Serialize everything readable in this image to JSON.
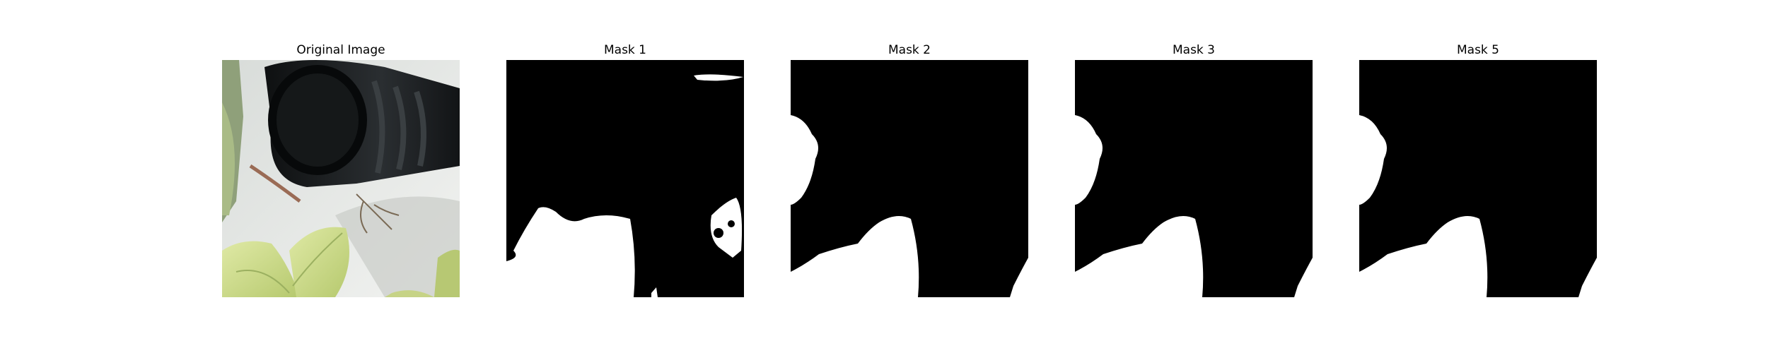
{
  "figure": {
    "panels": [
      {
        "title": "Original Image"
      },
      {
        "title": "Mask 1"
      },
      {
        "title": "Mask 2"
      },
      {
        "title": "Mask 3"
      },
      {
        "title": "Mask 5"
      }
    ]
  },
  "colors": {
    "mask_background": "#000000",
    "mask_foreground": "#ffffff",
    "pot": "#1a1d1f",
    "leaf": "#c8d98a"
  }
}
